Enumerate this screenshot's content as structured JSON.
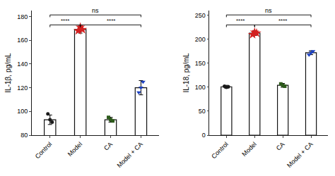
{
  "chart_data": [
    {
      "type": "bar",
      "ylabel": "IL-1β, pg/mL",
      "categories": [
        "Control",
        "Model",
        "CA",
        "Model + CA"
      ],
      "values": [
        93,
        169,
        93,
        120
      ],
      "errors": [
        4,
        3,
        2,
        6
      ],
      "color": "white",
      "points": {
        "values": [
          [
            98,
            93,
            91
          ],
          [
            168,
            171,
            169
          ],
          [
            95,
            93,
            92
          ],
          [
            116,
            120,
            125
          ]
        ],
        "colors": [
          "#1a1a1a",
          "#d42020",
          "#2d5a1b",
          "#1a3fbf"
        ],
        "markers": [
          "circle",
          "star",
          "square",
          "triangle-down"
        ]
      },
      "ylim": [
        80,
        185
      ],
      "yticks": [
        80,
        100,
        120,
        140,
        160,
        180
      ],
      "grid": false,
      "brackets": [
        {
          "from": "Control",
          "to": "Model + CA",
          "label": "ns"
        },
        {
          "from": "Control",
          "to": "Model",
          "label": "****"
        },
        {
          "from": "Model",
          "to": "Model + CA",
          "label": "****"
        }
      ]
    },
    {
      "type": "bar",
      "ylabel": "IL-18, pg/mL",
      "categories": [
        "Control",
        "Model",
        "CA",
        "Model + CA"
      ],
      "values": [
        101,
        213,
        104,
        172
      ],
      "errors": [
        3,
        5,
        4,
        4
      ],
      "color": "white",
      "points": {
        "values": [
          [
            102,
            100,
            101
          ],
          [
            210,
            215,
            213
          ],
          [
            107,
            104,
            102
          ],
          [
            168,
            172,
            175
          ]
        ],
        "colors": [
          "#1a1a1a",
          "#d42020",
          "#2d5a1b",
          "#1a3fbf"
        ],
        "markers": [
          "circle",
          "star",
          "square",
          "triangle-down"
        ]
      },
      "ylim": [
        0,
        260
      ],
      "yticks": [
        0,
        50,
        100,
        150,
        200,
        250
      ],
      "grid": false,
      "brackets": [
        {
          "from": "Control",
          "to": "Model + CA",
          "label": "ns"
        },
        {
          "from": "Control",
          "to": "Model",
          "label": "****"
        },
        {
          "from": "Model",
          "to": "Model + CA",
          "label": "****"
        }
      ]
    }
  ]
}
